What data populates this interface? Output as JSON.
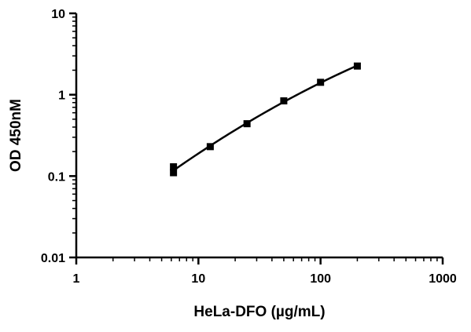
{
  "chart_data": {
    "type": "scatter",
    "xlabel": "HeLa-DFO (µg/mL)",
    "ylabel": "OD 450nM",
    "x_scale": "log",
    "y_scale": "log",
    "xlim": [
      1,
      1000
    ],
    "ylim": [
      0.01,
      10
    ],
    "x_ticks": [
      {
        "value": 1,
        "label": "1"
      },
      {
        "value": 10,
        "label": "10"
      },
      {
        "value": 100,
        "label": "100"
      },
      {
        "value": 1000,
        "label": "1000"
      }
    ],
    "y_ticks": [
      {
        "value": 0.01,
        "label": "0.01"
      },
      {
        "value": 0.1,
        "label": "0.1"
      },
      {
        "value": 1,
        "label": "1"
      },
      {
        "value": 10,
        "label": "10"
      }
    ],
    "grid": false,
    "legend": "none",
    "series": [
      {
        "points": [
          {
            "x": 6.25,
            "y": 0.13
          },
          {
            "x": 6.25,
            "y": 0.11
          },
          {
            "x": 12.5,
            "y": 0.23
          },
          {
            "x": 25,
            "y": 0.44
          },
          {
            "x": 50,
            "y": 0.84
          },
          {
            "x": 100,
            "y": 1.42
          },
          {
            "x": 200,
            "y": 2.25
          }
        ],
        "fit_curve": true,
        "color": "#000000"
      }
    ]
  }
}
